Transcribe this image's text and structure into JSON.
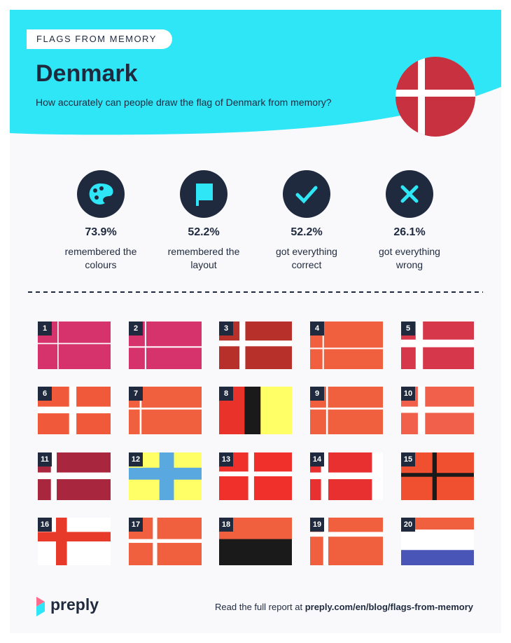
{
  "header": {
    "tag": "FLAGS FROM MEMORY",
    "title": "Denmark",
    "subtitle": "How accurately can people draw the flag of Denmark from memory?"
  },
  "stats": [
    {
      "value": "73.9%",
      "label": "remembered the colours"
    },
    {
      "value": "52.2%",
      "label": "remembered the layout"
    },
    {
      "value": "52.2%",
      "label": "got everything correct"
    },
    {
      "value": "26.1%",
      "label": "got everything wrong"
    }
  ],
  "flags": [
    1,
    2,
    3,
    4,
    5,
    6,
    7,
    8,
    9,
    10,
    11,
    12,
    13,
    14,
    15,
    16,
    17,
    18,
    19,
    20
  ],
  "footer": {
    "logo": "preply",
    "text": "Read the full report at",
    "link": "preply.com/en/blog/flags-from-memory"
  }
}
